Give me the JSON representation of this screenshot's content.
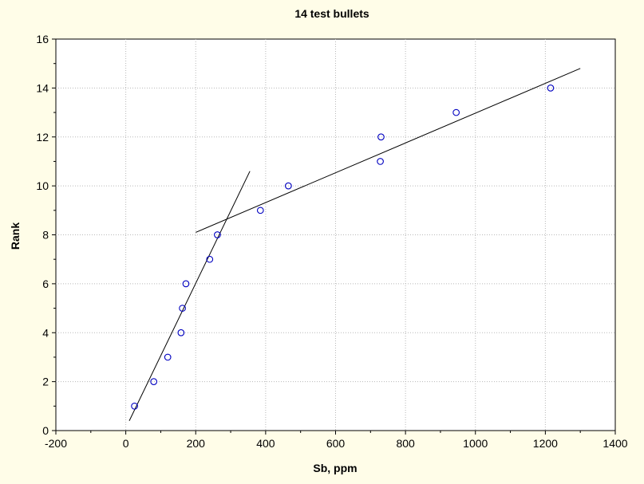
{
  "chart_data": {
    "type": "scatter",
    "title": "14 test bullets",
    "xlabel": "Sb, ppm",
    "ylabel": "Rank",
    "xlim": [
      -200,
      1400
    ],
    "ylim": [
      0,
      16
    ],
    "x_ticks": [
      -200,
      0,
      200,
      400,
      600,
      800,
      1000,
      1200,
      1400
    ],
    "y_ticks": [
      0,
      2,
      4,
      6,
      8,
      10,
      12,
      14,
      16
    ],
    "grid": true,
    "points": [
      {
        "x": 25,
        "y": 1
      },
      {
        "x": 80,
        "y": 2
      },
      {
        "x": 120,
        "y": 3
      },
      {
        "x": 158,
        "y": 4
      },
      {
        "x": 162,
        "y": 5
      },
      {
        "x": 172,
        "y": 6
      },
      {
        "x": 240,
        "y": 7
      },
      {
        "x": 262,
        "y": 8
      },
      {
        "x": 385,
        "y": 9
      },
      {
        "x": 465,
        "y": 10
      },
      {
        "x": 728,
        "y": 11
      },
      {
        "x": 730,
        "y": 12
      },
      {
        "x": 945,
        "y": 13
      },
      {
        "x": 1215,
        "y": 14
      }
    ],
    "fit_lines": [
      {
        "x": [
          10,
          355
        ],
        "y": [
          0.4,
          10.6
        ]
      },
      {
        "x": [
          200,
          1300
        ],
        "y": [
          8.1,
          14.8
        ]
      }
    ],
    "colors": {
      "marker": "#0000c0",
      "line": "#000000",
      "grid": "#b8b8b8",
      "plot_bg": "#ffffff",
      "page_bg": "#fffde8"
    }
  }
}
